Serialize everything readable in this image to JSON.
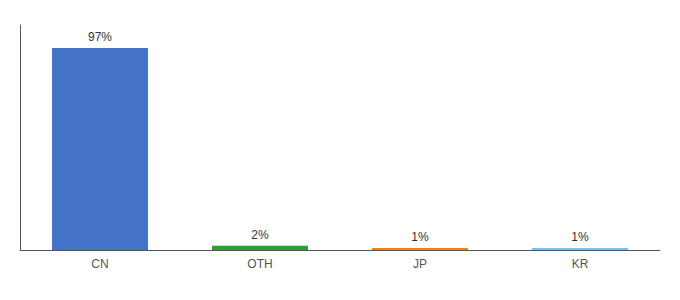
{
  "chart_data": {
    "type": "bar",
    "categories": [
      "CN",
      "OTH",
      "JP",
      "KR"
    ],
    "values": [
      97,
      2,
      1,
      1
    ],
    "value_labels": [
      "97%",
      "2%",
      "1%",
      "1%"
    ],
    "colors": [
      "#4472c4",
      "#2ca02c",
      "#ff7f0e",
      "#72c4f4"
    ],
    "ylim": [
      0,
      108
    ],
    "data_labels": true,
    "tick_labels": "x",
    "grid": false
  }
}
